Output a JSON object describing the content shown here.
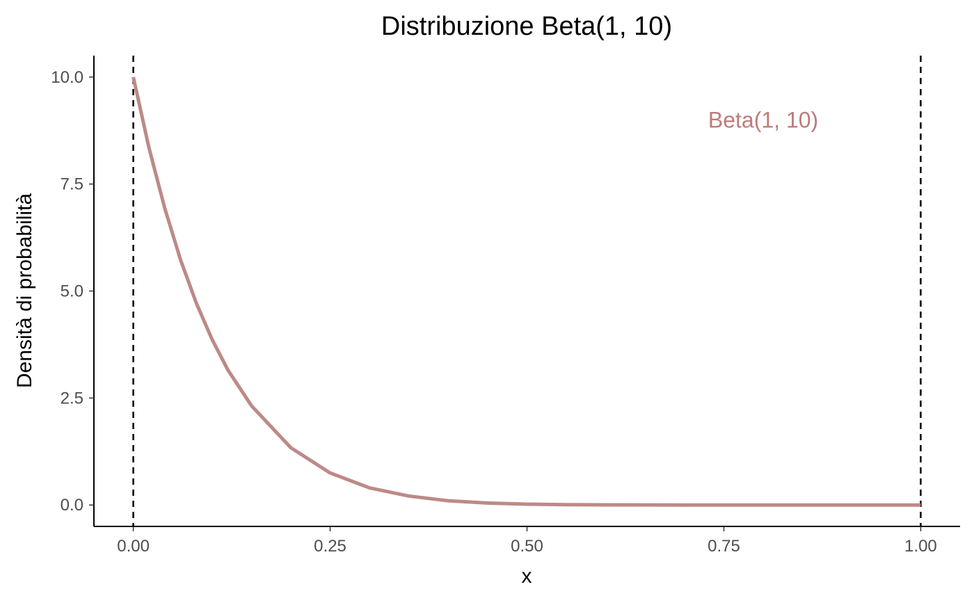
{
  "chart_data": {
    "type": "line",
    "title": "Distribuzione Beta(1, 10)",
    "xlabel": "x",
    "ylabel": "Densità di probabilità",
    "xlim": [
      -0.05,
      1.05
    ],
    "ylim": [
      -0.5,
      10.5
    ],
    "x_ticks": [
      0,
      0.25,
      0.5,
      0.75,
      1
    ],
    "x_tick_labels": [
      "0.00",
      "0.25",
      "0.50",
      "0.75",
      "1.00"
    ],
    "y_ticks": [
      0,
      2.5,
      5,
      7.5,
      10
    ],
    "y_tick_labels": [
      "0.0",
      "2.5",
      "5.0",
      "7.5",
      "10.0"
    ],
    "grid": false,
    "vlines": [
      {
        "x": 0,
        "style": "dashed",
        "color": "#000000"
      },
      {
        "x": 1,
        "style": "dashed",
        "color": "#000000"
      }
    ],
    "series": [
      {
        "color": "#bc8a87",
        "x": [
          0,
          0.02,
          0.04,
          0.06,
          0.08,
          0.1,
          0.12,
          0.15,
          0.2,
          0.25,
          0.3,
          0.35,
          0.4,
          0.45,
          0.5,
          0.55,
          0.6,
          0.7,
          0.8,
          0.9,
          1.0
        ],
        "y": [
          10,
          8.34,
          6.93,
          5.73,
          4.72,
          3.87,
          3.16,
          2.32,
          1.34,
          0.75,
          0.4,
          0.21,
          0.1,
          0.046,
          0.02,
          0.008,
          0.003,
          0.0003,
          1e-05,
          0,
          0
        ]
      }
    ],
    "annotations": [
      {
        "text": "Beta(1, 10)",
        "x": 0.8,
        "y": 9,
        "color": "#bc7b79"
      }
    ]
  }
}
